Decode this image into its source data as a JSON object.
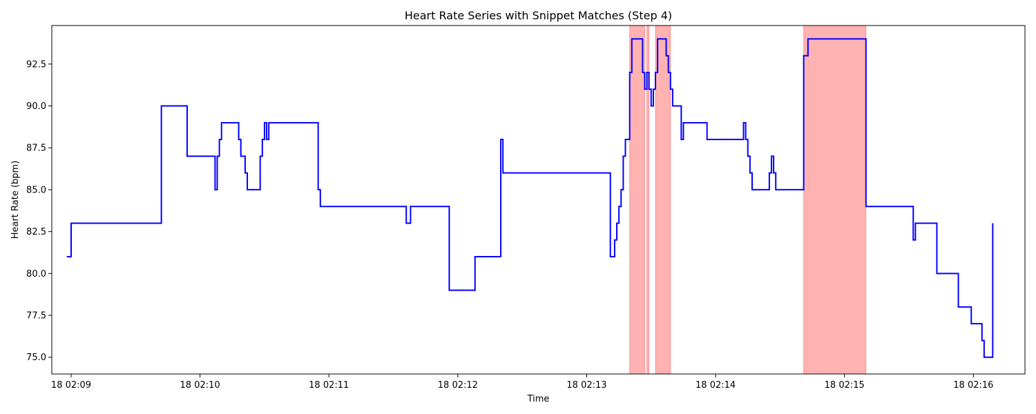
{
  "chart_data": {
    "type": "line",
    "title": "Heart Rate Series with Snippet Matches (Step 4)",
    "xlabel": "Time",
    "ylabel": "Heart Rate (bpm)",
    "xlim": [
      "02:08:51",
      "02:16:24"
    ],
    "ylim": [
      74,
      94.8
    ],
    "x_ticks": [
      {
        "time": "02:09:00",
        "label": "18 02:09"
      },
      {
        "time": "02:10:00",
        "label": "18 02:10"
      },
      {
        "time": "02:11:00",
        "label": "18 02:11"
      },
      {
        "time": "02:12:00",
        "label": "18 02:12"
      },
      {
        "time": "02:13:00",
        "label": "18 02:13"
      },
      {
        "time": "02:14:00",
        "label": "18 02:14"
      },
      {
        "time": "02:15:00",
        "label": "18 02:15"
      },
      {
        "time": "02:16:00",
        "label": "18 02:16"
      }
    ],
    "y_ticks": [
      75.0,
      77.5,
      80.0,
      82.5,
      85.0,
      87.5,
      90.0,
      92.5
    ],
    "y_tick_labels": [
      "75.0",
      "77.5",
      "80.0",
      "82.5",
      "85.0",
      "87.5",
      "90.0",
      "92.5"
    ],
    "grid": false,
    "colors": {
      "line": "#0000ff",
      "highlight": "#ff0000"
    },
    "series": [
      {
        "step": "post",
        "points": [
          [
            "02:08:58",
            81
          ],
          [
            "02:09:00",
            83
          ],
          [
            "02:09:42",
            90
          ],
          [
            "02:09:54",
            87
          ],
          [
            "02:10:07",
            85
          ],
          [
            "02:10:08",
            87
          ],
          [
            "02:10:09",
            88
          ],
          [
            "02:10:10",
            89
          ],
          [
            "02:10:18",
            88
          ],
          [
            "02:10:19",
            87
          ],
          [
            "02:10:21",
            86
          ],
          [
            "02:10:22",
            85
          ],
          [
            "02:10:28",
            87
          ],
          [
            "02:10:29",
            88
          ],
          [
            "02:10:30",
            89
          ],
          [
            "02:10:31",
            88
          ],
          [
            "02:10:32",
            89
          ],
          [
            "02:10:55",
            85
          ],
          [
            "02:10:56",
            84
          ],
          [
            "02:11:36",
            83
          ],
          [
            "02:11:38",
            84
          ],
          [
            "02:11:56",
            79
          ],
          [
            "02:12:08",
            81
          ],
          [
            "02:12:20",
            88
          ],
          [
            "02:12:21",
            86
          ],
          [
            "02:13:11",
            81
          ],
          [
            "02:13:13",
            82
          ],
          [
            "02:13:14",
            83
          ],
          [
            "02:13:15",
            84
          ],
          [
            "02:13:16",
            85
          ],
          [
            "02:13:17",
            87
          ],
          [
            "02:13:18",
            88
          ],
          [
            "02:13:20",
            92
          ],
          [
            "02:13:21",
            94
          ],
          [
            "02:13:26",
            92
          ],
          [
            "02:13:27",
            91
          ],
          [
            "02:13:28",
            92
          ],
          [
            "02:13:29",
            91
          ],
          [
            "02:13:30",
            90
          ],
          [
            "02:13:31",
            91
          ],
          [
            "02:13:32",
            92
          ],
          [
            "02:13:33",
            94
          ],
          [
            "02:13:37",
            93
          ],
          [
            "02:13:38",
            92
          ],
          [
            "02:13:39",
            91
          ],
          [
            "02:13:40",
            90
          ],
          [
            "02:13:44",
            88
          ],
          [
            "02:13:45",
            89
          ],
          [
            "02:13:56",
            88
          ],
          [
            "02:14:13",
            89
          ],
          [
            "02:14:14",
            88
          ],
          [
            "02:14:15",
            87
          ],
          [
            "02:14:16",
            86
          ],
          [
            "02:14:17",
            85
          ],
          [
            "02:14:25",
            86
          ],
          [
            "02:14:26",
            87
          ],
          [
            "02:14:27",
            86
          ],
          [
            "02:14:28",
            85
          ],
          [
            "02:14:41",
            93
          ],
          [
            "02:14:43",
            94
          ],
          [
            "02:15:10",
            84
          ],
          [
            "02:15:32",
            82
          ],
          [
            "02:15:33",
            83
          ],
          [
            "02:15:43",
            80
          ],
          [
            "02:15:53",
            78
          ],
          [
            "02:15:59",
            77
          ],
          [
            "02:16:04",
            76
          ],
          [
            "02:16:05",
            75
          ],
          [
            "02:16:09",
            83
          ],
          [
            "02:16:09",
            83
          ]
        ]
      }
    ],
    "highlighted_ranges": [
      [
        "02:13:20",
        "02:13:27"
      ],
      [
        "02:13:28",
        "02:13:29"
      ],
      [
        "02:13:32",
        "02:13:39"
      ],
      [
        "02:14:41",
        "02:15:10"
      ]
    ]
  }
}
